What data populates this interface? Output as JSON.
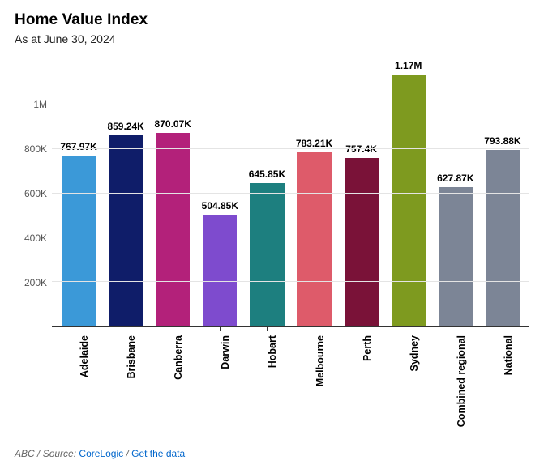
{
  "chart": {
    "type": "bar",
    "title": "Home Value Index",
    "subtitle": "As at June 30, 2024",
    "title_fontsize": 19,
    "subtitle_fontsize": 14,
    "background_color": "#ffffff",
    "grid_color": "#e4e4e4",
    "axis_color": "#333333",
    "label_color": "#555555",
    "bar_width_ratio": 0.78,
    "ylim_max": 1200000,
    "yticks": [
      {
        "value": 200000,
        "label": "200K"
      },
      {
        "value": 400000,
        "label": "400K"
      },
      {
        "value": 600000,
        "label": "600K"
      },
      {
        "value": 800000,
        "label": "800K"
      },
      {
        "value": 1000000,
        "label": "1M"
      }
    ],
    "bars": [
      {
        "category": "Adelaide",
        "value": 767970,
        "display": "767.97K",
        "color": "#3b99d8"
      },
      {
        "category": "Brisbane",
        "value": 859240,
        "display": "859.24K",
        "color": "#0f1d69"
      },
      {
        "category": "Canberra",
        "value": 870070,
        "display": "870.07K",
        "color": "#b3217a"
      },
      {
        "category": "Darwin",
        "value": 504850,
        "display": "504.85K",
        "color": "#7e4bce"
      },
      {
        "category": "Hobart",
        "value": 645850,
        "display": "645.85K",
        "color": "#1d7f7f"
      },
      {
        "category": "Melbourne",
        "value": 783210,
        "display": "783.21K",
        "color": "#de5b6a"
      },
      {
        "category": "Perth",
        "value": 757400,
        "display": "757.4K",
        "color": "#7a1238"
      },
      {
        "category": "Sydney",
        "value": 1170000,
        "display": "1.17M",
        "color": "#7e9a1f"
      },
      {
        "category": "Combined regional",
        "value": 627870,
        "display": "627.87K",
        "color": "#7c8596"
      },
      {
        "category": "National",
        "value": 793880,
        "display": "793.88K",
        "color": "#7c8596"
      }
    ]
  },
  "footer": {
    "prefix": "ABC",
    "source_label": "Source:",
    "source_name": "CoreLogic",
    "data_link_label": "Get the data",
    "link_color": "#0066cc"
  }
}
